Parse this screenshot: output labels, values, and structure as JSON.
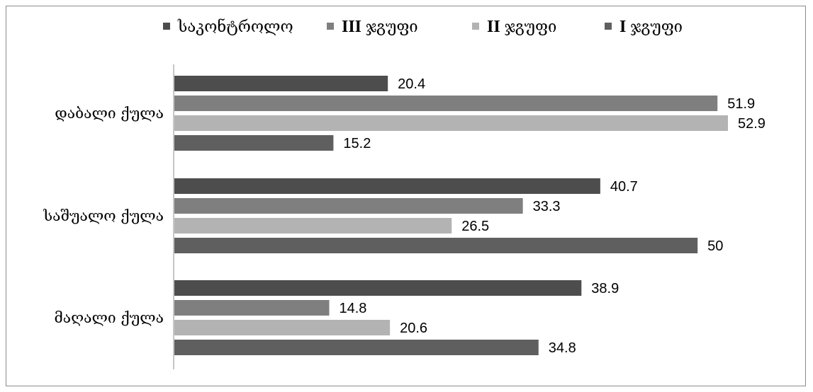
{
  "chart_data": {
    "type": "bar",
    "orientation": "horizontal",
    "title": "",
    "xlabel": "",
    "ylabel": "",
    "categories": [
      "დაბალი ქულა",
      "საშუალო ქულა",
      "მაღალი ქულა"
    ],
    "series": [
      {
        "name": "საკონტროლო",
        "roman": "",
        "text": "საკონტროლო",
        "color": "#4d4d4d",
        "values": [
          20.4,
          40.7,
          38.9
        ]
      },
      {
        "name": "III ჯგუფი",
        "roman": "III",
        "text": "ჯგუფი",
        "color": "#7f7f7f",
        "values": [
          51.9,
          33.3,
          14.8
        ]
      },
      {
        "name": "II ჯგუფი",
        "roman": "II",
        "text": "ჯგუფი",
        "color": "#b3b3b3",
        "values": [
          52.9,
          26.5,
          20.6
        ]
      },
      {
        "name": "I ჯგუფი",
        "roman": "I",
        "text": "ჯგუფი",
        "color": "#5f5f5f",
        "values": [
          15.2,
          50,
          34.8
        ]
      }
    ],
    "xlim": [
      0,
      53
    ],
    "grid": false,
    "legend": "top"
  }
}
